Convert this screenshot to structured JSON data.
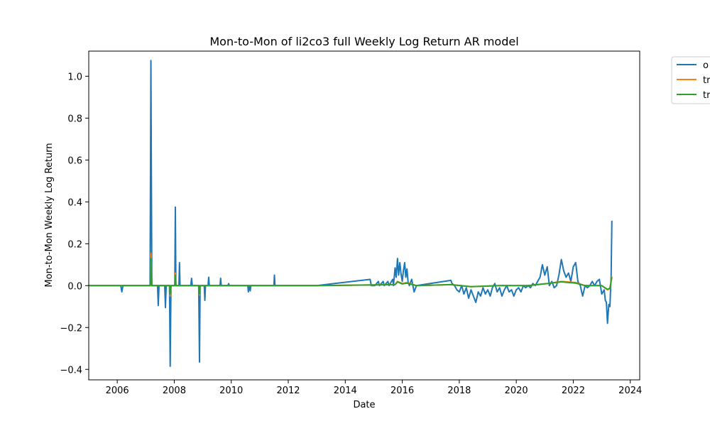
{
  "chart_data": {
    "type": "line",
    "title": "Mon-to-Mon of li2co3 full Weekly Log Return AR model",
    "xlabel": "Date",
    "ylabel": "Mon-to-Mon Weekly Log Return",
    "xlim": [
      "2005-01-01",
      "2024-05-01"
    ],
    "ylim": [
      -0.45,
      1.12
    ],
    "x_ticks": [
      "2006",
      "2008",
      "2010",
      "2012",
      "2014",
      "2016",
      "2018",
      "2020",
      "2022",
      "2024"
    ],
    "y_ticks": [
      "−0.4",
      "−0.2",
      "0.0",
      "0.2",
      "0.4",
      "0.6",
      "0.8",
      "1.0"
    ],
    "grid": false,
    "legend_position": "outside-top-right",
    "legend_visible_labels": [
      "o",
      "tr",
      "tr"
    ],
    "series": [
      {
        "color": "#1f77b4",
        "points": [
          [
            "2005-01-01",
            0.0
          ],
          [
            "2006-02-15",
            0.0
          ],
          [
            "2006-03-01",
            -0.03
          ],
          [
            "2006-03-15",
            0.0
          ],
          [
            "2007-02-25",
            0.0
          ],
          [
            "2007-03-08",
            1.075
          ],
          [
            "2007-03-20",
            0.0
          ],
          [
            "2007-06-01",
            0.0
          ],
          [
            "2007-06-10",
            -0.095
          ],
          [
            "2007-06-20",
            0.0
          ],
          [
            "2007-09-01",
            0.0
          ],
          [
            "2007-09-10",
            -0.105
          ],
          [
            "2007-09-20",
            0.0
          ],
          [
            "2007-11-01",
            0.0
          ],
          [
            "2007-11-10",
            -0.385
          ],
          [
            "2007-11-20",
            0.0
          ],
          [
            "2008-01-08",
            0.0
          ],
          [
            "2008-01-15",
            0.375
          ],
          [
            "2008-01-22",
            0.0
          ],
          [
            "2008-03-01",
            0.0
          ],
          [
            "2008-03-08",
            0.11
          ],
          [
            "2008-03-15",
            0.0
          ],
          [
            "2008-08-01",
            0.0
          ],
          [
            "2008-08-10",
            0.035
          ],
          [
            "2008-08-20",
            0.0
          ],
          [
            "2008-11-10",
            0.0
          ],
          [
            "2008-11-20",
            -0.365
          ],
          [
            "2008-11-28",
            0.0
          ],
          [
            "2009-01-20",
            0.0
          ],
          [
            "2009-01-28",
            -0.07
          ],
          [
            "2009-02-05",
            0.0
          ],
          [
            "2009-03-10",
            0.0
          ],
          [
            "2009-03-18",
            0.04
          ],
          [
            "2009-03-26",
            0.0
          ],
          [
            "2009-08-10",
            0.0
          ],
          [
            "2009-08-18",
            0.035
          ],
          [
            "2009-08-26",
            0.0
          ],
          [
            "2009-11-20",
            0.0
          ],
          [
            "2009-11-28",
            0.01
          ],
          [
            "2009-12-06",
            0.0
          ],
          [
            "2010-08-01",
            0.0
          ],
          [
            "2010-08-08",
            -0.03
          ],
          [
            "2010-08-15",
            0.0
          ],
          [
            "2010-09-01",
            -0.025
          ],
          [
            "2010-09-08",
            0.0
          ],
          [
            "2011-07-01",
            0.0
          ],
          [
            "2011-07-08",
            0.05
          ],
          [
            "2011-07-15",
            0.0
          ],
          [
            "2012-12-31",
            0.0
          ],
          [
            "2014-11-15",
            0.03
          ],
          [
            "2014-12-01",
            0.0
          ],
          [
            "2015-01-15",
            0.0
          ],
          [
            "2015-03-01",
            0.02
          ],
          [
            "2015-03-15",
            0.0
          ],
          [
            "2015-05-01",
            0.02
          ],
          [
            "2015-05-15",
            0.0
          ],
          [
            "2015-07-01",
            0.02
          ],
          [
            "2015-07-15",
            0.0
          ],
          [
            "2015-09-01",
            0.03
          ],
          [
            "2015-09-10",
            0.0
          ],
          [
            "2015-10-01",
            0.085
          ],
          [
            "2015-10-15",
            0.04
          ],
          [
            "2015-11-01",
            0.13
          ],
          [
            "2015-11-15",
            0.05
          ],
          [
            "2015-12-01",
            0.11
          ],
          [
            "2015-12-15",
            0.06
          ],
          [
            "2016-01-01",
            0.02
          ],
          [
            "2016-01-15",
            0.07
          ],
          [
            "2016-02-01",
            0.11
          ],
          [
            "2016-02-15",
            0.04
          ],
          [
            "2016-03-01",
            0.08
          ],
          [
            "2016-03-15",
            0.02
          ],
          [
            "2016-04-01",
            0.0
          ],
          [
            "2016-05-01",
            0.03
          ],
          [
            "2016-06-01",
            -0.03
          ],
          [
            "2016-07-01",
            0.0
          ],
          [
            "2017-09-15",
            0.025
          ],
          [
            "2017-10-01",
            0.01
          ],
          [
            "2017-11-01",
            0.0
          ],
          [
            "2017-12-01",
            -0.02
          ],
          [
            "2018-01-01",
            -0.03
          ],
          [
            "2018-02-01",
            0.0
          ],
          [
            "2018-03-01",
            -0.04
          ],
          [
            "2018-04-01",
            -0.01
          ],
          [
            "2018-05-01",
            -0.06
          ],
          [
            "2018-06-01",
            -0.02
          ],
          [
            "2018-07-01",
            -0.05
          ],
          [
            "2018-08-01",
            -0.08
          ],
          [
            "2018-09-01",
            -0.03
          ],
          [
            "2018-10-01",
            -0.05
          ],
          [
            "2018-11-01",
            -0.01
          ],
          [
            "2018-12-01",
            -0.04
          ],
          [
            "2019-01-01",
            -0.02
          ],
          [
            "2019-02-01",
            -0.05
          ],
          [
            "2019-03-01",
            -0.01
          ],
          [
            "2019-04-01",
            0.01
          ],
          [
            "2019-05-01",
            -0.03
          ],
          [
            "2019-06-01",
            -0.01
          ],
          [
            "2019-07-01",
            -0.05
          ],
          [
            "2019-08-01",
            -0.02
          ],
          [
            "2019-09-01",
            0.0
          ],
          [
            "2019-10-01",
            -0.03
          ],
          [
            "2019-11-01",
            -0.02
          ],
          [
            "2019-12-01",
            -0.05
          ],
          [
            "2020-01-01",
            -0.02
          ],
          [
            "2020-02-01",
            -0.01
          ],
          [
            "2020-03-01",
            -0.03
          ],
          [
            "2020-04-01",
            0.0
          ],
          [
            "2020-05-01",
            -0.01
          ],
          [
            "2020-06-01",
            0.0
          ],
          [
            "2020-07-01",
            -0.01
          ],
          [
            "2020-08-01",
            0.01
          ],
          [
            "2020-09-01",
            0.0
          ],
          [
            "2020-10-01",
            0.02
          ],
          [
            "2020-11-01",
            0.04
          ],
          [
            "2020-12-01",
            0.1
          ],
          [
            "2021-01-01",
            0.05
          ],
          [
            "2021-02-01",
            0.09
          ],
          [
            "2021-03-01",
            0.0
          ],
          [
            "2021-04-01",
            0.02
          ],
          [
            "2021-05-01",
            -0.01
          ],
          [
            "2021-06-01",
            0.0
          ],
          [
            "2021-07-01",
            0.05
          ],
          [
            "2021-08-01",
            0.125
          ],
          [
            "2021-09-01",
            0.07
          ],
          [
            "2021-10-01",
            0.04
          ],
          [
            "2021-11-01",
            0.06
          ],
          [
            "2021-12-01",
            0.02
          ],
          [
            "2022-01-01",
            0.09
          ],
          [
            "2022-02-01",
            0.11
          ],
          [
            "2022-03-01",
            0.02
          ],
          [
            "2022-04-01",
            0.0
          ],
          [
            "2022-05-01",
            -0.05
          ],
          [
            "2022-06-01",
            0.0
          ],
          [
            "2022-07-01",
            -0.01
          ],
          [
            "2022-08-01",
            0.0
          ],
          [
            "2022-09-01",
            0.02
          ],
          [
            "2022-10-01",
            0.0
          ],
          [
            "2022-11-01",
            0.02
          ],
          [
            "2022-12-01",
            0.03
          ],
          [
            "2023-01-01",
            -0.04
          ],
          [
            "2023-02-01",
            -0.02
          ],
          [
            "2023-02-15",
            -0.07
          ],
          [
            "2023-03-01",
            -0.08
          ],
          [
            "2023-03-15",
            -0.18
          ],
          [
            "2023-04-01",
            -0.09
          ],
          [
            "2023-04-15",
            -0.1
          ],
          [
            "2023-05-01",
            0.05
          ],
          [
            "2023-05-10",
            0.31
          ]
        ]
      },
      {
        "color": "#ff7f0e",
        "points": [
          [
            "2005-01-01",
            0.0
          ],
          [
            "2007-03-01",
            0.0
          ],
          [
            "2007-03-08",
            0.155
          ],
          [
            "2007-03-20",
            0.0
          ],
          [
            "2007-11-05",
            0.0
          ],
          [
            "2007-11-10",
            -0.05
          ],
          [
            "2007-11-20",
            0.0
          ],
          [
            "2008-01-08",
            0.0
          ],
          [
            "2008-01-15",
            0.06
          ],
          [
            "2008-01-22",
            0.0
          ],
          [
            "2008-11-15",
            0.0
          ],
          [
            "2008-11-20",
            -0.045
          ],
          [
            "2008-11-28",
            0.0
          ],
          [
            "2012-12-31",
            0.0
          ],
          [
            "2015-10-01",
            0.005
          ],
          [
            "2015-11-01",
            0.02
          ],
          [
            "2016-01-01",
            0.01
          ],
          [
            "2016-03-01",
            0.015
          ],
          [
            "2016-07-01",
            0.0
          ],
          [
            "2017-09-15",
            0.005
          ],
          [
            "2018-06-01",
            -0.005
          ],
          [
            "2019-06-01",
            0.0
          ],
          [
            "2020-06-01",
            0.0
          ],
          [
            "2021-02-01",
            0.01
          ],
          [
            "2021-08-01",
            0.02
          ],
          [
            "2022-02-01",
            0.015
          ],
          [
            "2022-06-01",
            0.0
          ],
          [
            "2023-01-01",
            0.0
          ],
          [
            "2023-03-15",
            -0.02
          ],
          [
            "2023-04-15",
            -0.015
          ],
          [
            "2023-05-10",
            0.045
          ]
        ]
      },
      {
        "color": "#2ca02c",
        "points": [
          [
            "2005-01-01",
            0.0
          ],
          [
            "2007-03-01",
            0.0
          ],
          [
            "2007-03-08",
            0.13
          ],
          [
            "2007-03-20",
            0.0
          ],
          [
            "2007-11-05",
            0.0
          ],
          [
            "2007-11-10",
            -0.04
          ],
          [
            "2007-11-20",
            0.0
          ],
          [
            "2008-01-08",
            0.0
          ],
          [
            "2008-01-15",
            0.05
          ],
          [
            "2008-01-22",
            0.0
          ],
          [
            "2008-11-15",
            0.0
          ],
          [
            "2008-11-20",
            -0.04
          ],
          [
            "2008-11-28",
            0.0
          ],
          [
            "2012-12-31",
            0.0
          ],
          [
            "2015-10-01",
            0.005
          ],
          [
            "2015-11-01",
            0.018
          ],
          [
            "2016-01-01",
            0.008
          ],
          [
            "2016-03-01",
            0.012
          ],
          [
            "2016-07-01",
            0.0
          ],
          [
            "2017-09-15",
            0.005
          ],
          [
            "2018-06-01",
            -0.005
          ],
          [
            "2019-06-01",
            0.0
          ],
          [
            "2020-06-01",
            0.0
          ],
          [
            "2021-02-01",
            0.01
          ],
          [
            "2021-08-01",
            0.018
          ],
          [
            "2022-02-01",
            0.012
          ],
          [
            "2022-06-01",
            0.0
          ],
          [
            "2023-01-01",
            0.0
          ],
          [
            "2023-03-15",
            -0.018
          ],
          [
            "2023-04-15",
            -0.012
          ],
          [
            "2023-05-10",
            0.04
          ]
        ]
      }
    ]
  }
}
